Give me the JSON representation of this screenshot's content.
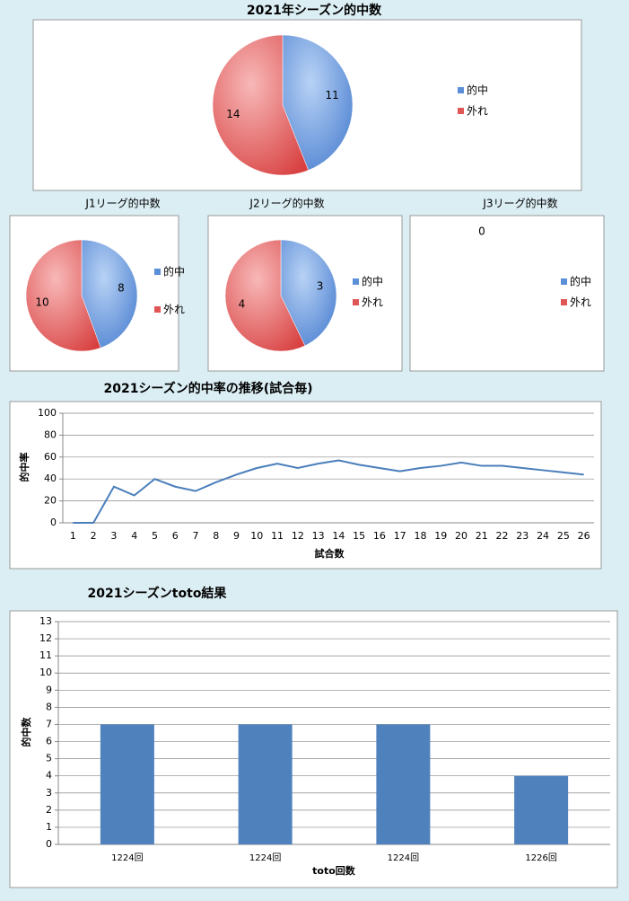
{
  "chart_data": [
    {
      "type": "pie",
      "title": "2021年シーズン的中数",
      "categories": [
        "的中",
        "外れ"
      ],
      "values": [
        11,
        14
      ],
      "colors": [
        "#5b8fd8",
        "#e05555"
      ],
      "legend": "right"
    },
    {
      "type": "pie",
      "title": "J1リーグ的中数",
      "categories": [
        "的中",
        "外れ"
      ],
      "values": [
        8,
        10
      ],
      "colors": [
        "#5b8fd8",
        "#e05555"
      ],
      "legend": "right"
    },
    {
      "type": "pie",
      "title": "J2リーグ的中数",
      "categories": [
        "的中",
        "外れ"
      ],
      "values": [
        3,
        4
      ],
      "colors": [
        "#5b8fd8",
        "#e05555"
      ],
      "legend": "right"
    },
    {
      "type": "pie",
      "title": "J3リーグ的中数",
      "categories": [
        "的中",
        "外れ"
      ],
      "values": [
        0,
        null
      ],
      "colors": [
        "#5b8fd8",
        "#e05555"
      ],
      "legend": "right"
    },
    {
      "type": "line",
      "title": "2021シーズン的中率の推移(試合毎)",
      "x_label": "試合数",
      "y_label": "的中率",
      "x": [
        1,
        2,
        3,
        4,
        5,
        6,
        7,
        8,
        9,
        10,
        11,
        12,
        13,
        14,
        15,
        16,
        17,
        18,
        19,
        20,
        21,
        22,
        23,
        24,
        25,
        26
      ],
      "xlim": [
        0.5,
        26.5
      ],
      "series": [
        {
          "name": "的中率",
          "color": "#4a7ebb",
          "values": [
            0,
            0,
            33,
            25,
            40,
            33,
            29,
            37,
            44,
            50,
            54,
            50,
            54,
            57,
            53,
            50,
            47,
            50,
            52,
            55,
            52,
            52,
            50,
            48,
            46,
            44
          ]
        }
      ],
      "ylim": [
        0,
        100
      ],
      "yticks": [
        0,
        20,
        40,
        60,
        80,
        100
      ],
      "grid": true
    },
    {
      "type": "bar",
      "title": "2021シーズンtoto結果",
      "x_label": "toto回数",
      "y_label": "的中数",
      "categories": [
        "1224回",
        "1224回",
        "1224回",
        "1226回"
      ],
      "values": [
        7,
        7,
        7,
        4
      ],
      "color": "#4f81bd",
      "ylim": [
        0,
        13
      ],
      "yticks": [
        0,
        1,
        2,
        3,
        4,
        5,
        6,
        7,
        8,
        9,
        10,
        11,
        12,
        13
      ],
      "grid": true
    }
  ]
}
